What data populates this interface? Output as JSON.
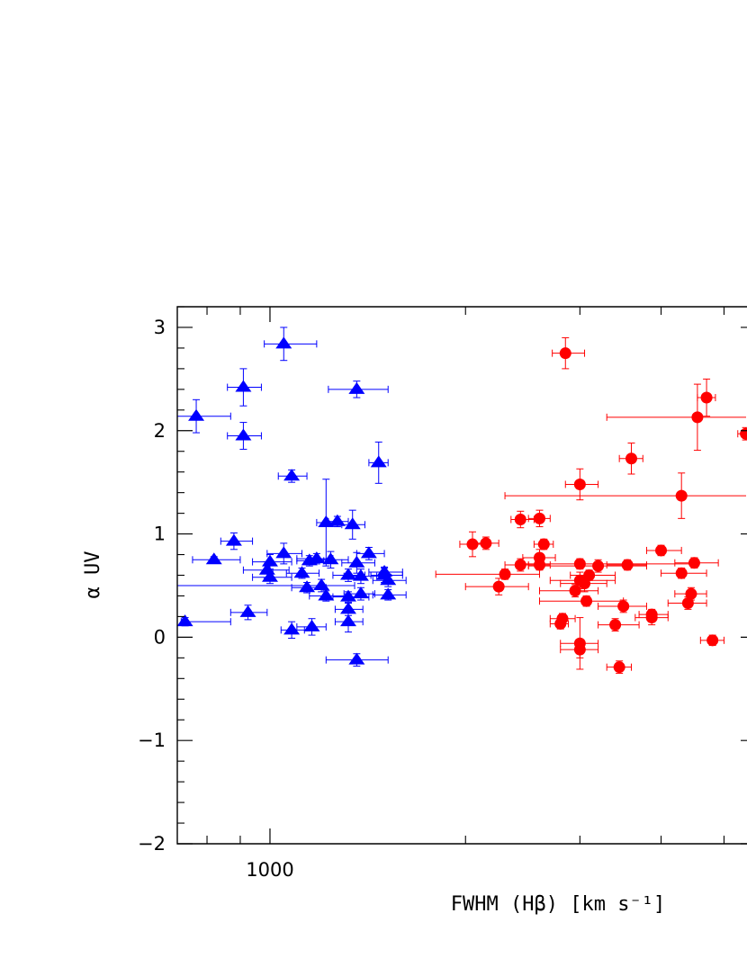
{
  "chart_data": {
    "type": "scatter",
    "xlabel": "FWHM (Hβ) [km s⁻¹]",
    "ylabel": "α UV",
    "x_scale": "log",
    "xlim": [
      720,
      5600
    ],
    "ylim": [
      -2,
      3.2
    ],
    "x_tick_labels": [
      {
        "value": 1000,
        "label": "1000"
      }
    ],
    "x_minor_ticks": [
      800,
      900,
      2000,
      3000,
      4000,
      5000
    ],
    "y_ticks": [
      -2,
      -1,
      0,
      1,
      2,
      3
    ],
    "y_tick_labels": [
      "−2",
      "−1",
      "0",
      "1",
      "2",
      "3"
    ],
    "grid": false,
    "series": [
      {
        "marker": "triangle",
        "color": "#0000ff",
        "points": [
          {
            "x": 740,
            "y": 0.15,
            "xlo": 730,
            "xhi": 870,
            "yerr": 0.04
          },
          {
            "x": 770,
            "y": 2.14,
            "xlo": 720,
            "xhi": 870,
            "yerr": 0.16
          },
          {
            "x": 820,
            "y": 0.75,
            "xlo": 760,
            "xhi": 900,
            "yerr": 0.03
          },
          {
            "x": 880,
            "y": 0.93,
            "xlo": 840,
            "xhi": 940,
            "yerr": 0.08
          },
          {
            "x": 910,
            "y": 2.42,
            "xlo": 860,
            "xhi": 970,
            "yerr": 0.18
          },
          {
            "x": 910,
            "y": 1.95,
            "xlo": 860,
            "xhi": 970,
            "yerr": 0.13
          },
          {
            "x": 925,
            "y": 0.24,
            "xlo": 870,
            "xhi": 990,
            "yerr": 0.07
          },
          {
            "x": 990,
            "y": 0.65,
            "xlo": 910,
            "xhi": 1070,
            "yerr": 0.08
          },
          {
            "x": 1000,
            "y": 0.73,
            "xlo": 940,
            "xhi": 1080,
            "yerr": 0.07
          },
          {
            "x": 1000,
            "y": 0.58,
            "xlo": 940,
            "xhi": 1080,
            "yerr": 0.06
          },
          {
            "x": 1050,
            "y": 2.84,
            "xlo": 980,
            "xhi": 1180,
            "yerr": 0.16
          },
          {
            "x": 1050,
            "y": 0.81,
            "xlo": 990,
            "xhi": 1120,
            "yerr": 0.1
          },
          {
            "x": 1080,
            "y": 1.56,
            "xlo": 1030,
            "xhi": 1140,
            "yerr": 0.06
          },
          {
            "x": 1080,
            "y": 0.07,
            "xlo": 1040,
            "xhi": 1130,
            "yerr": 0.08
          },
          {
            "x": 1120,
            "y": 0.62,
            "xlo": 1060,
            "xhi": 1190,
            "yerr": 0.05
          },
          {
            "x": 1140,
            "y": 0.48,
            "xlo": 1080,
            "xhi": 1220,
            "yerr": 0.05
          },
          {
            "x": 1150,
            "y": 0.74,
            "xlo": 1100,
            "xhi": 1210,
            "yerr": 0.05
          },
          {
            "x": 1160,
            "y": 0.1,
            "xlo": 1100,
            "xhi": 1220,
            "yerr": 0.08
          },
          {
            "x": 1180,
            "y": 0.76,
            "xlo": 1100,
            "xhi": 1250,
            "yerr": 0.05
          },
          {
            "x": 1200,
            "y": 0.5,
            "xlo": 720,
            "xhi": 1350,
            "yerr": 0.06
          },
          {
            "x": 1220,
            "y": 0.4,
            "xlo": 1150,
            "xhi": 1320,
            "yerr": 0.05
          },
          {
            "x": 1220,
            "y": 1.11,
            "xlo": 1180,
            "xhi": 1270,
            "yerr": 0.42
          },
          {
            "x": 1240,
            "y": 0.75,
            "xlo": 1180,
            "xhi": 1320,
            "yerr": 0.08
          },
          {
            "x": 1270,
            "y": 1.12,
            "xlo": 1230,
            "xhi": 1320,
            "yerr": 0.05
          },
          {
            "x": 1320,
            "y": 0.6,
            "xlo": 1250,
            "xhi": 1400,
            "yerr": 0.06
          },
          {
            "x": 1320,
            "y": 0.39,
            "xlo": 1250,
            "xhi": 1420,
            "yerr": 0.05
          },
          {
            "x": 1320,
            "y": 0.15,
            "xlo": 1260,
            "xhi": 1390,
            "yerr": 0.1
          },
          {
            "x": 1320,
            "y": 0.27,
            "xlo": 1260,
            "xhi": 1390,
            "yerr": 0.06
          },
          {
            "x": 1340,
            "y": 1.09,
            "xlo": 1290,
            "xhi": 1400,
            "yerr": 0.14
          },
          {
            "x": 1360,
            "y": 2.4,
            "xlo": 1230,
            "xhi": 1520,
            "yerr": 0.08
          },
          {
            "x": 1360,
            "y": 0.72,
            "xlo": 1290,
            "xhi": 1450,
            "yerr": 0.1
          },
          {
            "x": 1360,
            "y": -0.22,
            "xlo": 1220,
            "xhi": 1520,
            "yerr": 0.06
          },
          {
            "x": 1380,
            "y": 0.59,
            "xlo": 1300,
            "xhi": 1460,
            "yerr": 0.07
          },
          {
            "x": 1380,
            "y": 0.42,
            "xlo": 1300,
            "xhi": 1450,
            "yerr": 0.06
          },
          {
            "x": 1420,
            "y": 0.81,
            "xlo": 1360,
            "xhi": 1500,
            "yerr": 0.06
          },
          {
            "x": 1470,
            "y": 1.69,
            "xlo": 1420,
            "xhi": 1520,
            "yerr": 0.2
          },
          {
            "x": 1500,
            "y": 0.6,
            "xlo": 1430,
            "xhi": 1600,
            "yerr": 0.07
          },
          {
            "x": 1500,
            "y": 0.63,
            "xlo": 1420,
            "xhi": 1600,
            "yerr": 0.05
          },
          {
            "x": 1520,
            "y": 0.55,
            "xlo": 1440,
            "xhi": 1620,
            "yerr": 0.06
          },
          {
            "x": 1520,
            "y": 0.41,
            "xlo": 1440,
            "xhi": 1620,
            "yerr": 0.05
          }
        ]
      },
      {
        "marker": "circle",
        "color": "#ff0000",
        "points": [
          {
            "x": 2050,
            "y": 0.9,
            "xlo": 1960,
            "xhi": 2150,
            "yerr": 0.12
          },
          {
            "x": 2150,
            "y": 0.91,
            "xlo": 2050,
            "xhi": 2250,
            "yerr": 0.06
          },
          {
            "x": 2250,
            "y": 0.49,
            "xlo": 2000,
            "xhi": 2500,
            "yerr": 0.08
          },
          {
            "x": 2300,
            "y": 0.61,
            "xlo": 1800,
            "xhi": 2600,
            "yerr": 0.05
          },
          {
            "x": 2430,
            "y": 1.14,
            "xlo": 2350,
            "xhi": 2550,
            "yerr": 0.08
          },
          {
            "x": 2430,
            "y": 0.7,
            "xlo": 2300,
            "xhi": 2600,
            "yerr": 0.06
          },
          {
            "x": 2600,
            "y": 1.15,
            "xlo": 2500,
            "xhi": 2700,
            "yerr": 0.08
          },
          {
            "x": 2600,
            "y": 0.77,
            "xlo": 2450,
            "xhi": 2750,
            "yerr": 0.08
          },
          {
            "x": 2600,
            "y": 0.7,
            "xlo": 2500,
            "xhi": 2700,
            "yerr": 0.05
          },
          {
            "x": 2640,
            "y": 0.9,
            "xlo": 2550,
            "xhi": 2730,
            "yerr": 0.05
          },
          {
            "x": 2800,
            "y": 0.13,
            "xlo": 2700,
            "xhi": 2880,
            "yerr": 0.05
          },
          {
            "x": 2820,
            "y": 0.18,
            "xlo": 2700,
            "xhi": 2950,
            "yerr": 0.05
          },
          {
            "x": 2850,
            "y": 2.75,
            "xlo": 2720,
            "xhi": 3050,
            "yerr": 0.15
          },
          {
            "x": 2950,
            "y": 0.45,
            "xlo": 2600,
            "xhi": 3200,
            "yerr": 0.06
          },
          {
            "x": 3000,
            "y": 1.48,
            "xlo": 2850,
            "xhi": 3200,
            "yerr": 0.15
          },
          {
            "x": 3000,
            "y": 0.71,
            "xlo": 2400,
            "xhi": 4500,
            "yerr": 0.05
          },
          {
            "x": 3000,
            "y": 0.55,
            "xlo": 2700,
            "xhi": 3400,
            "yerr": 0.08
          },
          {
            "x": 3000,
            "y": -0.06,
            "xlo": 2800,
            "xhi": 3200,
            "yerr": 0.25
          },
          {
            "x": 3000,
            "y": -0.12,
            "xlo": 2800,
            "xhi": 3200,
            "yerr": 0.08
          },
          {
            "x": 3050,
            "y": 0.52,
            "xlo": 2800,
            "xhi": 3300,
            "yerr": 0.08
          },
          {
            "x": 3070,
            "y": 0.35,
            "xlo": 2600,
            "xhi": 3500,
            "yerr": 0.05
          },
          {
            "x": 3100,
            "y": 0.6,
            "xlo": 2900,
            "xhi": 3400,
            "yerr": 0.05
          },
          {
            "x": 3200,
            "y": 0.69,
            "xlo": 2500,
            "xhi": 3800,
            "yerr": 0.06
          },
          {
            "x": 3400,
            "y": 0.12,
            "xlo": 3200,
            "xhi": 3700,
            "yerr": 0.06
          },
          {
            "x": 3450,
            "y": -0.29,
            "xlo": 3300,
            "xhi": 3600,
            "yerr": 0.06
          },
          {
            "x": 3500,
            "y": 0.3,
            "xlo": 3200,
            "xhi": 3800,
            "yerr": 0.06
          },
          {
            "x": 3550,
            "y": 0.7,
            "xlo": 3300,
            "xhi": 3800,
            "yerr": 0.05
          },
          {
            "x": 3600,
            "y": 1.73,
            "xlo": 3450,
            "xhi": 3750,
            "yerr": 0.15
          },
          {
            "x": 3870,
            "y": 0.22,
            "xlo": 3700,
            "xhi": 4100,
            "yerr": 0.05
          },
          {
            "x": 3870,
            "y": 0.19,
            "xlo": 3650,
            "xhi": 4100,
            "yerr": 0.07
          },
          {
            "x": 4000,
            "y": 0.84,
            "xlo": 3800,
            "xhi": 4300,
            "yerr": 0.05
          },
          {
            "x": 4300,
            "y": 1.37,
            "xlo": 2300,
            "xhi": 5800,
            "yerr": 0.22
          },
          {
            "x": 4300,
            "y": 0.62,
            "xlo": 4000,
            "xhi": 4700,
            "yerr": 0.05
          },
          {
            "x": 4400,
            "y": 0.33,
            "xlo": 4100,
            "xhi": 4700,
            "yerr": 0.06
          },
          {
            "x": 4450,
            "y": 0.42,
            "xlo": 4200,
            "xhi": 4700,
            "yerr": 0.06
          },
          {
            "x": 4500,
            "y": 0.72,
            "xlo": 4200,
            "xhi": 4900,
            "yerr": 0.05
          },
          {
            "x": 4550,
            "y": 2.13,
            "xlo": 3300,
            "xhi": 5600,
            "yerr": 0.32
          },
          {
            "x": 4700,
            "y": 2.32,
            "xlo": 4550,
            "xhi": 4850,
            "yerr": 0.18
          },
          {
            "x": 4800,
            "y": -0.03,
            "xlo": 4600,
            "xhi": 5000,
            "yerr": 0.05
          },
          {
            "x": 5400,
            "y": 1.97,
            "xlo": 5250,
            "xhi": 5550,
            "yerr": 0.06
          }
        ]
      }
    ]
  }
}
